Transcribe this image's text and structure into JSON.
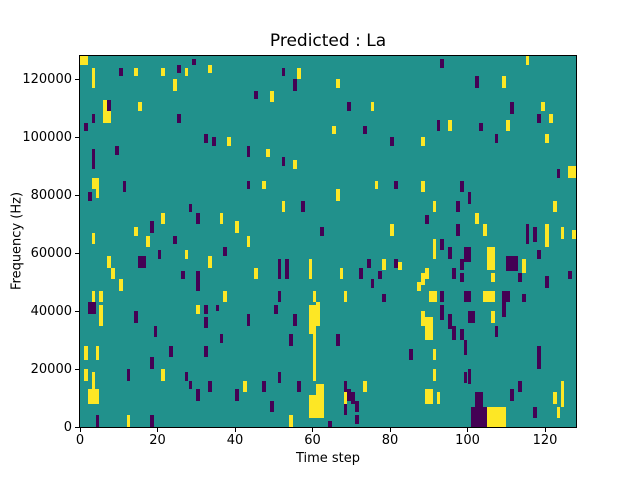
{
  "figure": {
    "title": "Predicted : La",
    "xlabel": "Time step",
    "ylabel": "Frequency (Hz)"
  },
  "chart_data": {
    "type": "heatmap",
    "title": "Predicted : La",
    "xlabel": "Time step",
    "ylabel": "Frequency (Hz)",
    "x_range": [
      0,
      128
    ],
    "y_range_hz": [
      0,
      128000
    ],
    "x_ticks": [
      0,
      20,
      40,
      60,
      80,
      100,
      120
    ],
    "y_ticks": [
      0,
      20000,
      40000,
      60000,
      80000,
      100000,
      120000
    ],
    "grid": false,
    "legend": "none",
    "colormap": {
      "name": "viridis",
      "background_mid": "#21918c",
      "low_purple": "#440154",
      "high_yellow": "#fde725"
    },
    "cells_format": "[t_step, f_kHz, width_steps, height_kHz, value] value 1=high(yellow), 0=low(purple); background is mid(teal)",
    "cells": [
      [
        0,
        125,
        2,
        3,
        1
      ],
      [
        3,
        121,
        1,
        3,
        1
      ],
      [
        10,
        121,
        1,
        3,
        0
      ],
      [
        14,
        121,
        1,
        3,
        1
      ],
      [
        21,
        121,
        1,
        3,
        1
      ],
      [
        25,
        122,
        1,
        3,
        0
      ],
      [
        27,
        121,
        1,
        3,
        1
      ],
      [
        29,
        125,
        1,
        2,
        0
      ],
      [
        33,
        122,
        1,
        3,
        1
      ],
      [
        3,
        117,
        1,
        4,
        1
      ],
      [
        24,
        116,
        1,
        4,
        1
      ],
      [
        6,
        105,
        2,
        8,
        1
      ],
      [
        7,
        109,
        1,
        4,
        0
      ],
      [
        15,
        109,
        1,
        3,
        1
      ],
      [
        3,
        105,
        1,
        3,
        0
      ],
      [
        1,
        102,
        1,
        3,
        0
      ],
      [
        25,
        105,
        1,
        3,
        0
      ],
      [
        32,
        98,
        1,
        3,
        0
      ],
      [
        9,
        94,
        1,
        3,
        0
      ],
      [
        3,
        89,
        1,
        7,
        0
      ],
      [
        43,
        93,
        1,
        3,
        0
      ],
      [
        52,
        121,
        1,
        3,
        0
      ],
      [
        56,
        120,
        1,
        4,
        1
      ],
      [
        55,
        116,
        1,
        4,
        0
      ],
      [
        66,
        117,
        1,
        3,
        1
      ],
      [
        45,
        113,
        1,
        3,
        0
      ],
      [
        49,
        112,
        1,
        4,
        1
      ],
      [
        69,
        109,
        1,
        3,
        0
      ],
      [
        75,
        109,
        1,
        3,
        1
      ],
      [
        65,
        101,
        1,
        3,
        1
      ],
      [
        73,
        101,
        1,
        3,
        0
      ],
      [
        34,
        97,
        1,
        3,
        0
      ],
      [
        38,
        97,
        1,
        3,
        1
      ],
      [
        43,
        94,
        1,
        3,
        0
      ],
      [
        48,
        93,
        1,
        3,
        1
      ],
      [
        52,
        90,
        1,
        3,
        0
      ],
      [
        55,
        89,
        1,
        3,
        1
      ],
      [
        93,
        124,
        1,
        3,
        0
      ],
      [
        115,
        125,
        1,
        3,
        1
      ],
      [
        102,
        117,
        1,
        4,
        0
      ],
      [
        109,
        117,
        1,
        4,
        1
      ],
      [
        111,
        108,
        1,
        4,
        0
      ],
      [
        119,
        109,
        1,
        3,
        1
      ],
      [
        118,
        105,
        1,
        3,
        0
      ],
      [
        121,
        105,
        1,
        3,
        1
      ],
      [
        92,
        102,
        1,
        4,
        0
      ],
      [
        95,
        102,
        1,
        4,
        1
      ],
      [
        103,
        102,
        1,
        3,
        0
      ],
      [
        110,
        102,
        1,
        4,
        1
      ],
      [
        107,
        98,
        1,
        3,
        0
      ],
      [
        80,
        97,
        1,
        3,
        0
      ],
      [
        88,
        97,
        1,
        3,
        1
      ],
      [
        120,
        98,
        1,
        3,
        1
      ],
      [
        123,
        86,
        1,
        3,
        0
      ],
      [
        126,
        86,
        2,
        4,
        1
      ],
      [
        3,
        82,
        2,
        4,
        1
      ],
      [
        2,
        78,
        1,
        3,
        0
      ],
      [
        4,
        79,
        1,
        3,
        1
      ],
      [
        11,
        81,
        1,
        4,
        0
      ],
      [
        28,
        74,
        1,
        3,
        0
      ],
      [
        21,
        70,
        1,
        4,
        1
      ],
      [
        30,
        70,
        1,
        4,
        0
      ],
      [
        36,
        70,
        1,
        4,
        1
      ],
      [
        14,
        66,
        1,
        3,
        1
      ],
      [
        18,
        67,
        1,
        4,
        0
      ],
      [
        40,
        67,
        1,
        4,
        1
      ],
      [
        3,
        63,
        1,
        4,
        1
      ],
      [
        17,
        62,
        1,
        4,
        1
      ],
      [
        24,
        63,
        1,
        3,
        0
      ],
      [
        20,
        58,
        1,
        3,
        0
      ],
      [
        27,
        58,
        1,
        3,
        1
      ],
      [
        37,
        59,
        1,
        3,
        0
      ],
      [
        7,
        55,
        1,
        4,
        1
      ],
      [
        15,
        55,
        2,
        4,
        0
      ],
      [
        33,
        55,
        1,
        4,
        1
      ],
      [
        8,
        51,
        1,
        4,
        1
      ],
      [
        26,
        51,
        1,
        3,
        0
      ],
      [
        30,
        51,
        1,
        3,
        0
      ],
      [
        10,
        47,
        1,
        4,
        1
      ],
      [
        30,
        47,
        1,
        4,
        0
      ],
      [
        3,
        43,
        1,
        4,
        1
      ],
      [
        5,
        43,
        1,
        4,
        1
      ],
      [
        37,
        43,
        1,
        4,
        1
      ],
      [
        43,
        82,
        1,
        3,
        0
      ],
      [
        47,
        82,
        1,
        3,
        1
      ],
      [
        76,
        82,
        1,
        3,
        1
      ],
      [
        81,
        82,
        1,
        3,
        0
      ],
      [
        66,
        78,
        1,
        4,
        1
      ],
      [
        52,
        74,
        1,
        4,
        1
      ],
      [
        57,
        74,
        1,
        4,
        0
      ],
      [
        62,
        66,
        1,
        3,
        0
      ],
      [
        80,
        66,
        1,
        4,
        1
      ],
      [
        43,
        62,
        1,
        4,
        1
      ],
      [
        51,
        51,
        1,
        7,
        0
      ],
      [
        53,
        51,
        1,
        7,
        0
      ],
      [
        59,
        51,
        1,
        7,
        1
      ],
      [
        45,
        51,
        1,
        4,
        1
      ],
      [
        67,
        51,
        1,
        4,
        1
      ],
      [
        72,
        51,
        1,
        4,
        0
      ],
      [
        74,
        55,
        1,
        3,
        0
      ],
      [
        78,
        54,
        1,
        4,
        1
      ],
      [
        77,
        51,
        1,
        3,
        0
      ],
      [
        75,
        48,
        1,
        3,
        0
      ],
      [
        51,
        43,
        1,
        4,
        0
      ],
      [
        60,
        43,
        1,
        4,
        1
      ],
      [
        68,
        43,
        1,
        4,
        1
      ],
      [
        78,
        43,
        1,
        3,
        0
      ],
      [
        81,
        55,
        1,
        3,
        0
      ],
      [
        82,
        54,
        1,
        3,
        1
      ],
      [
        88,
        81,
        1,
        4,
        1
      ],
      [
        98,
        81,
        1,
        4,
        0
      ],
      [
        100,
        77,
        1,
        4,
        0
      ],
      [
        91,
        74,
        1,
        4,
        1
      ],
      [
        97,
        74,
        1,
        4,
        0
      ],
      [
        122,
        74,
        1,
        4,
        1
      ],
      [
        89,
        70,
        1,
        3,
        0
      ],
      [
        102,
        70,
        1,
        4,
        1
      ],
      [
        97,
        66,
        1,
        4,
        0
      ],
      [
        104,
        66,
        1,
        4,
        1
      ],
      [
        115,
        63,
        1,
        7,
        0
      ],
      [
        117,
        64,
        1,
        5,
        0
      ],
      [
        120,
        62,
        1,
        8,
        1
      ],
      [
        124,
        65,
        1,
        4,
        1
      ],
      [
        127,
        65,
        1,
        3,
        1
      ],
      [
        91,
        58,
        1,
        7,
        1
      ],
      [
        93,
        61,
        1,
        4,
        0
      ],
      [
        95,
        58,
        1,
        4,
        0
      ],
      [
        99,
        57,
        2,
        5,
        0
      ],
      [
        105,
        54,
        2,
        8,
        1
      ],
      [
        110,
        54,
        3,
        5,
        0
      ],
      [
        114,
        53,
        1,
        5,
        1
      ],
      [
        98,
        54,
        1,
        4,
        0
      ],
      [
        89,
        51,
        1,
        4,
        1
      ],
      [
        96,
        51,
        1,
        4,
        0
      ],
      [
        98,
        50,
        1,
        3,
        0
      ],
      [
        88,
        49,
        1,
        4,
        1
      ],
      [
        126,
        51,
        1,
        3,
        0
      ],
      [
        87,
        47,
        1,
        3,
        1
      ],
      [
        120,
        48,
        1,
        4,
        0
      ],
      [
        118,
        58,
        1,
        3,
        0
      ],
      [
        106,
        50,
        1,
        3,
        1
      ],
      [
        113,
        50,
        1,
        3,
        0
      ],
      [
        90,
        43,
        2,
        4,
        1
      ],
      [
        93,
        43,
        1,
        4,
        0
      ],
      [
        99,
        43,
        2,
        4,
        0
      ],
      [
        104,
        43,
        3,
        4,
        1
      ],
      [
        109,
        43,
        2,
        4,
        0
      ],
      [
        114,
        43,
        1,
        3,
        0
      ],
      [
        2,
        39,
        2,
        4,
        0
      ],
      [
        5,
        35,
        1,
        7,
        1
      ],
      [
        30,
        39,
        1,
        3,
        1
      ],
      [
        32,
        39,
        1,
        3,
        0
      ],
      [
        35,
        40,
        1,
        2,
        0
      ],
      [
        14,
        36,
        1,
        4,
        0
      ],
      [
        32,
        34,
        1,
        4,
        0
      ],
      [
        19,
        31,
        1,
        4,
        0
      ],
      [
        36,
        29,
        1,
        3,
        0
      ],
      [
        1,
        23,
        1,
        5,
        1
      ],
      [
        4,
        23,
        1,
        5,
        1
      ],
      [
        23,
        24,
        1,
        4,
        0
      ],
      [
        32,
        24,
        1,
        4,
        0
      ],
      [
        18,
        20,
        1,
        4,
        0
      ],
      [
        1,
        16,
        1,
        4,
        1
      ],
      [
        3,
        12,
        1,
        7,
        1
      ],
      [
        12,
        16,
        1,
        4,
        0
      ],
      [
        21,
        16,
        1,
        4,
        1
      ],
      [
        27,
        16,
        1,
        3,
        0
      ],
      [
        28,
        13,
        1,
        3,
        0
      ],
      [
        33,
        12,
        1,
        4,
        0
      ],
      [
        2,
        8,
        3,
        5,
        1
      ],
      [
        30,
        9,
        1,
        4,
        0
      ],
      [
        40,
        9,
        1,
        4,
        0
      ],
      [
        4,
        0,
        1,
        4,
        0
      ],
      [
        12,
        0,
        1,
        4,
        1
      ],
      [
        18,
        0,
        1,
        4,
        0
      ],
      [
        50,
        39,
        1,
        3,
        0
      ],
      [
        43,
        35,
        1,
        4,
        0
      ],
      [
        55,
        35,
        1,
        4,
        0
      ],
      [
        59,
        32,
        2,
        10,
        1
      ],
      [
        61,
        35,
        1,
        8,
        1
      ],
      [
        54,
        28,
        1,
        4,
        0
      ],
      [
        60,
        26,
        1,
        6,
        1
      ],
      [
        66,
        28,
        1,
        4,
        0
      ],
      [
        60,
        16,
        1,
        11,
        1
      ],
      [
        61,
        11,
        2,
        4,
        1
      ],
      [
        59,
        3,
        4,
        8,
        1
      ],
      [
        51,
        15,
        1,
        4,
        0
      ],
      [
        42,
        12,
        1,
        4,
        1
      ],
      [
        47,
        12,
        1,
        4,
        0
      ],
      [
        56,
        12,
        1,
        4,
        0
      ],
      [
        68,
        12,
        1,
        4,
        0
      ],
      [
        73,
        12,
        1,
        4,
        1
      ],
      [
        69,
        9,
        1,
        4,
        0
      ],
      [
        68,
        8,
        1,
        4,
        1
      ],
      [
        70,
        8,
        1,
        4,
        0
      ],
      [
        49,
        5,
        1,
        4,
        0
      ],
      [
        71,
        5,
        1,
        4,
        0
      ],
      [
        68,
        4,
        1,
        4,
        0
      ],
      [
        54,
        0,
        1,
        4,
        1
      ],
      [
        64,
        0,
        1,
        2,
        0
      ],
      [
        71,
        1,
        1,
        3,
        0
      ],
      [
        88,
        35,
        1,
        5,
        1
      ],
      [
        89,
        30,
        2,
        8,
        1
      ],
      [
        93,
        37,
        1,
        5,
        0
      ],
      [
        95,
        34,
        1,
        5,
        0
      ],
      [
        96,
        30,
        1,
        5,
        0
      ],
      [
        100,
        36,
        2,
        4,
        0
      ],
      [
        106,
        36,
        1,
        4,
        1
      ],
      [
        109,
        38,
        1,
        5,
        0
      ],
      [
        98,
        30,
        1,
        4,
        0
      ],
      [
        99,
        25,
        1,
        5,
        0
      ],
      [
        107,
        31,
        1,
        4,
        0
      ],
      [
        85,
        23,
        1,
        4,
        0
      ],
      [
        91,
        23,
        1,
        4,
        1
      ],
      [
        118,
        20,
        1,
        8,
        0
      ],
      [
        91,
        16,
        1,
        4,
        1
      ],
      [
        99,
        15,
        1,
        4,
        0
      ],
      [
        100,
        15,
        1,
        5,
        0
      ],
      [
        113,
        12,
        1,
        4,
        0
      ],
      [
        124,
        7,
        1,
        9,
        1
      ],
      [
        89,
        8,
        2,
        5,
        1
      ],
      [
        92,
        8,
        1,
        4,
        1
      ],
      [
        111,
        9,
        1,
        4,
        0
      ],
      [
        122,
        8,
        1,
        4,
        1
      ],
      [
        102,
        7,
        2,
        5,
        0
      ],
      [
        101,
        0,
        4,
        7,
        0
      ],
      [
        105,
        0,
        5,
        7,
        1
      ],
      [
        117,
        3,
        1,
        4,
        0
      ],
      [
        123,
        3,
        1,
        4,
        1
      ]
    ]
  }
}
